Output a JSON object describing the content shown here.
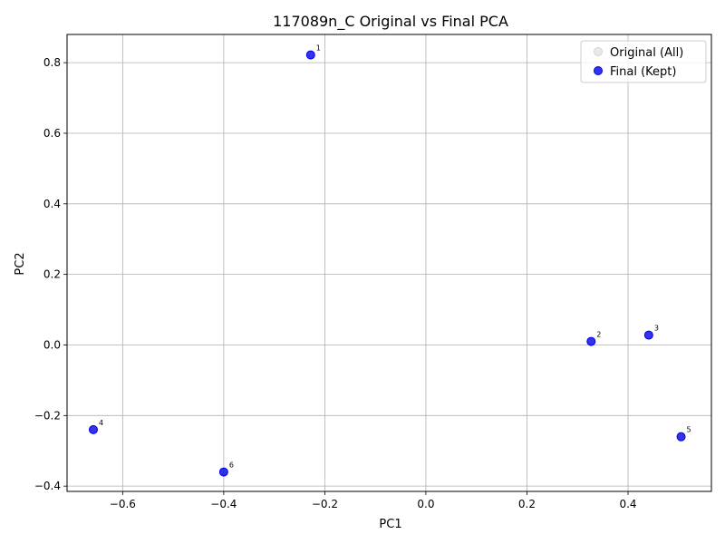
{
  "chart_data": {
    "type": "scatter",
    "title": "117089n_C Original vs Final PCA",
    "xlabel": "PC1",
    "ylabel": "PC2",
    "xlim": [
      -0.71,
      0.565
    ],
    "ylim": [
      -0.415,
      0.88
    ],
    "xticks": [
      -0.6,
      -0.4,
      -0.2,
      0.0,
      0.2,
      0.4
    ],
    "yticks": [
      -0.4,
      -0.2,
      0.0,
      0.2,
      0.4,
      0.6,
      0.8
    ],
    "xtick_labels": [
      "−0.6",
      "−0.4",
      "−0.2",
      "0.0",
      "0.2",
      "0.4"
    ],
    "ytick_labels": [
      "−0.4",
      "−0.2",
      "0.0",
      "0.2",
      "0.4",
      "0.6",
      "0.8"
    ],
    "grid": true,
    "legend_position": "top-right",
    "series": [
      {
        "name": "Original (All)",
        "color": "#d3d3d3",
        "points": []
      },
      {
        "name": "Final (Kept)",
        "color": "#0000e6",
        "points": [
          {
            "label": "1",
            "x": -0.228,
            "y": 0.822
          },
          {
            "label": "2",
            "x": 0.327,
            "y": 0.01
          },
          {
            "label": "3",
            "x": 0.441,
            "y": 0.028
          },
          {
            "label": "4",
            "x": -0.658,
            "y": -0.24
          },
          {
            "label": "5",
            "x": 0.505,
            "y": -0.26
          },
          {
            "label": "6",
            "x": -0.4,
            "y": -0.36
          }
        ]
      }
    ]
  }
}
